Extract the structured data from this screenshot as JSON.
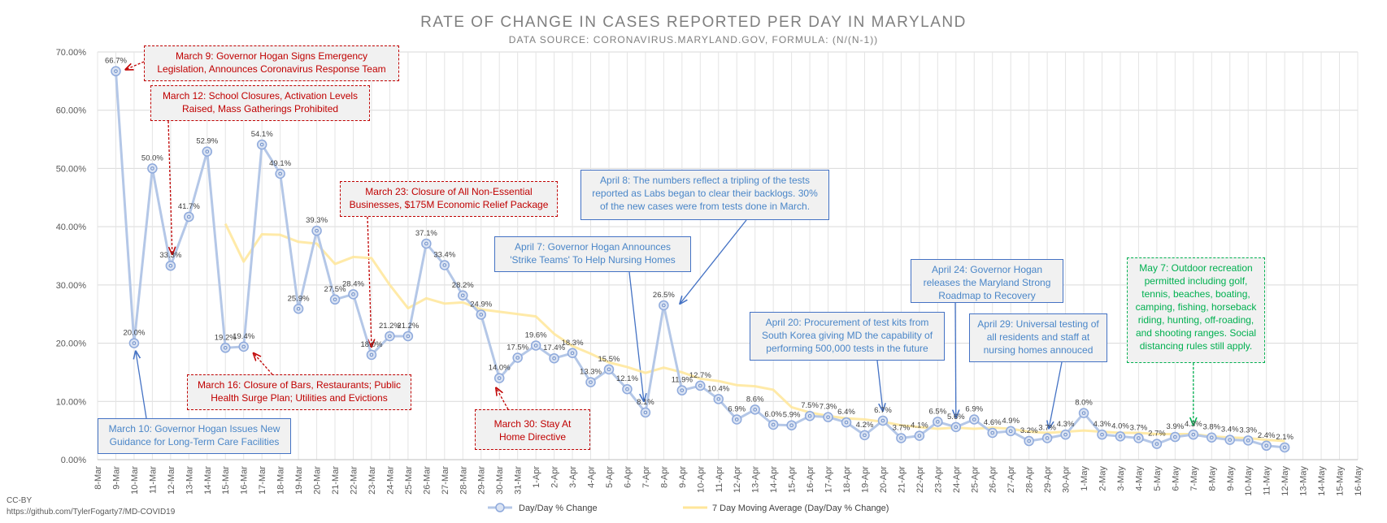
{
  "chart_data": {
    "type": "line",
    "title": "RATE OF CHANGE IN CASES REPORTED PER DAY IN MARYLAND",
    "subtitle": "DATA SOURCE: CORONAVIRUS.MARYLAND.GOV, FORMULA: (N/(N-1))",
    "categories": [
      "8-Mar",
      "9-Mar",
      "10-Mar",
      "11-Mar",
      "12-Mar",
      "13-Mar",
      "14-Mar",
      "15-Mar",
      "16-Mar",
      "17-Mar",
      "18-Mar",
      "19-Mar",
      "20-Mar",
      "21-Mar",
      "22-Mar",
      "23-Mar",
      "24-Mar",
      "25-Mar",
      "26-Mar",
      "27-Mar",
      "28-Mar",
      "29-Mar",
      "30-Mar",
      "31-Mar",
      "1-Apr",
      "2-Apr",
      "3-Apr",
      "4-Apr",
      "5-Apr",
      "6-Apr",
      "7-Apr",
      "8-Apr",
      "9-Apr",
      "10-Apr",
      "11-Apr",
      "12-Apr",
      "13-Apr",
      "14-Apr",
      "15-Apr",
      "16-Apr",
      "17-Apr",
      "18-Apr",
      "19-Apr",
      "20-Apr",
      "21-Apr",
      "22-Apr",
      "23-Apr",
      "24-Apr",
      "25-Apr",
      "26-Apr",
      "27-Apr",
      "28-Apr",
      "29-Apr",
      "30-Apr",
      "1-May",
      "2-May",
      "3-May",
      "4-May",
      "5-May",
      "6-May",
      "7-May",
      "8-May",
      "9-May",
      "10-May",
      "11-May",
      "12-May",
      "13-May",
      "14-May",
      "15-May",
      "16-May"
    ],
    "yticks": [
      "0.00%",
      "10.00%",
      "20.00%",
      "30.00%",
      "40.00%",
      "50.00%",
      "60.00%",
      "70.00%"
    ],
    "ylim": [
      0,
      70
    ],
    "series": [
      {
        "name": "Day/Day % Change",
        "color": "#8faadc",
        "values": [
          null,
          66.7,
          20.0,
          50.0,
          33.3,
          41.7,
          52.9,
          19.2,
          19.4,
          54.1,
          49.1,
          25.9,
          39.3,
          27.5,
          28.4,
          18.0,
          21.2,
          21.2,
          37.1,
          33.4,
          28.2,
          24.9,
          14.0,
          17.5,
          19.6,
          17.4,
          18.3,
          13.3,
          15.5,
          12.1,
          8.1,
          26.5,
          11.9,
          12.7,
          10.4,
          6.9,
          8.6,
          6.0,
          5.9,
          7.5,
          7.3,
          6.4,
          4.2,
          6.7,
          3.7,
          4.1,
          6.5,
          5.6,
          6.9,
          4.6,
          4.9,
          3.2,
          3.7,
          4.3,
          8.0,
          4.3,
          4.0,
          3.7,
          2.7,
          3.9,
          4.3,
          3.8,
          3.4,
          3.3,
          2.4,
          2.1,
          null,
          null,
          null,
          null
        ],
        "labels": [
          "",
          "66.7%",
          "20.0%",
          "50.0%",
          "33.3%",
          "41.7%",
          "52.9%",
          "19.2%",
          "19.4%",
          "54.1%",
          "49.1%",
          "25.9%",
          "39.3%",
          "27.5%",
          "28.4%",
          "18.0%",
          "21.2%",
          "21.2%",
          "37.1%",
          "33.4%",
          "28.2%",
          "24.9%",
          "14.0%",
          "17.5%",
          "19.6%",
          "17.4%",
          "18.3%",
          "13.3%",
          "15.5%",
          "12.1%",
          "8.1%",
          "26.5%",
          "11.9%",
          "12.7%",
          "10.4%",
          "6.9%",
          "8.6%",
          "6.0%",
          "5.9%",
          "7.5%",
          "7.3%",
          "6.4%",
          "4.2%",
          "6.7%",
          "3.7%",
          "4.1%",
          "6.5%",
          "5.6%",
          "6.9%",
          "4.6%",
          "4.9%",
          "3.2%",
          "3.7%",
          "4.3%",
          "8.0%",
          "4.3%",
          "4.0%",
          "3.7%",
          "2.7%",
          "3.9%",
          "4.3%",
          "3.8%",
          "3.4%",
          "3.3%",
          "2.4%",
          "2.1%",
          "",
          "",
          "",
          ""
        ]
      },
      {
        "name": "7 Day Moving Average (Day/Day % Change)",
        "color": "#ffe699",
        "values": [
          null,
          null,
          null,
          null,
          null,
          null,
          null,
          40.5,
          34.0,
          38.7,
          38.6,
          37.4,
          37.1,
          33.6,
          34.8,
          34.6,
          30.0,
          26.0,
          27.7,
          26.8,
          27.0,
          25.8,
          25.4,
          25.0,
          24.6,
          21.6,
          19.5,
          18.2,
          16.7,
          15.9,
          14.9,
          15.8,
          15.0,
          13.9,
          13.5,
          12.8,
          12.6,
          12.0,
          9.0,
          8.1,
          7.5,
          7.1,
          6.9,
          6.5,
          5.9,
          5.6,
          5.3,
          5.5,
          5.3,
          5.5,
          5.3,
          4.8,
          4.6,
          4.8,
          5.0,
          4.8,
          4.6,
          4.6,
          4.4,
          4.4,
          4.4,
          4.0,
          3.8,
          3.7,
          3.4,
          3.2,
          null,
          null,
          null,
          null
        ]
      }
    ],
    "legend_position": "bottom",
    "grid": true
  },
  "annotations": [
    {
      "key": "mar9",
      "style": "red",
      "lines": [
        "March 9: Governor Hogan Signs Emergency",
        "Legislation, Announces Coronavirus Response Team"
      ]
    },
    {
      "key": "mar12",
      "style": "red",
      "lines": [
        "March 12: School Closures, Activation Levels",
        "Raised, Mass Gatherings Prohibited"
      ]
    },
    {
      "key": "mar23",
      "style": "red",
      "lines": [
        "March 23: Closure of All Non-Essential",
        "Businesses, $175M Economic Relief Package"
      ]
    },
    {
      "key": "mar16",
      "style": "red",
      "lines": [
        "March 16: Closure of Bars, Restaurants; Public",
        "Health Surge Plan; Utilities and Evictions"
      ]
    },
    {
      "key": "mar30",
      "style": "red",
      "lines": [
        "March 30: Stay At",
        "Home Directive"
      ]
    },
    {
      "key": "mar10",
      "style": "blue",
      "lines": [
        "March 10: Governor Hogan Issues New",
        "Guidance for Long-Term Care Facilities"
      ]
    },
    {
      "key": "apr8",
      "style": "blue",
      "lines": [
        "April 8: The numbers reflect a tripling of the tests",
        "reported as Labs began to clear their backlogs. 30%",
        "of the new cases were from tests done in March."
      ]
    },
    {
      "key": "apr7",
      "style": "blue",
      "lines": [
        "April 7: Governor Hogan Announces",
        "'Strike Teams' To Help Nursing Homes"
      ]
    },
    {
      "key": "apr24",
      "style": "blue",
      "lines": [
        "April 24: Governor Hogan",
        "releases the Maryland Strong",
        "Roadmap to Recovery"
      ]
    },
    {
      "key": "apr20",
      "style": "blue",
      "lines": [
        "April 20: Procurement of test kits from",
        "South Korea giving MD the capability of",
        "performing 500,000 tests in the future"
      ]
    },
    {
      "key": "apr29",
      "style": "blue",
      "lines": [
        "April 29: Universal testing of",
        "all residents and staff at",
        "nursing homes annouced"
      ]
    },
    {
      "key": "may7",
      "style": "green",
      "lines": [
        "May 7: Outdoor recreation",
        "permitted including golf,",
        "tennis, beaches, boating,",
        "camping, fishing, horseback",
        "riding, hunting, off-roading,",
        "and shooting ranges. Social",
        "distancing rules still apply."
      ]
    }
  ],
  "credit": {
    "license": "CC-BY",
    "source": "https://github.com/TylerFogarty7/MD-COVID19"
  }
}
